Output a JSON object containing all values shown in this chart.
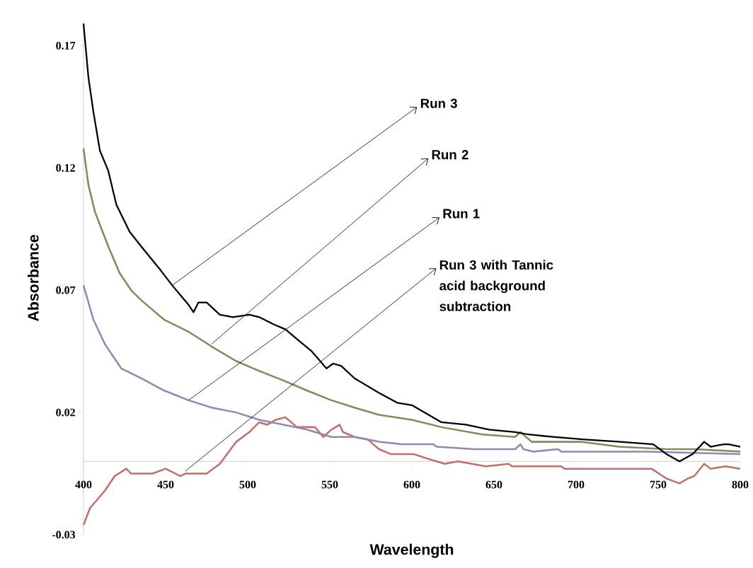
{
  "chart_data": {
    "type": "line",
    "xlabel": "Wavelength",
    "ylabel": "Absorbance",
    "xlim": [
      400,
      800
    ],
    "xticks": [
      400,
      450,
      500,
      550,
      600,
      650,
      700,
      750,
      800
    ],
    "ylim": [
      -0.03,
      0.18
    ],
    "yticks": [
      -0.03,
      0.02,
      0.07,
      0.12,
      0.17
    ],
    "grid": false,
    "series": [
      {
        "color": "#c0706b",
        "x": [
          400,
          404,
          413,
          419,
          426,
          429,
          442,
          450,
          459,
          462,
          475,
          483,
          493,
          501,
          507,
          512,
          517,
          523,
          530,
          541,
          546,
          551,
          556,
          558,
          565,
          573,
          580,
          587,
          601,
          610,
          620,
          628,
          645,
          659,
          661,
          691,
          693,
          746,
          755,
          763,
          768,
          772,
          778,
          782,
          791,
          800
        ],
        "values": [
          -0.026,
          -0.019,
          -0.012,
          -0.006,
          -0.003,
          -0.005,
          -0.005,
          -0.003,
          -0.006,
          -0.005,
          -0.005,
          -0.001,
          0.008,
          0.012,
          0.016,
          0.015,
          0.017,
          0.018,
          0.014,
          0.014,
          0.01,
          0.013,
          0.015,
          0.012,
          0.01,
          0.009,
          0.005,
          0.003,
          0.003,
          0.001,
          -0.001,
          0,
          -0.002,
          -0.001,
          -0.002,
          -0.002,
          -0.003,
          -0.003,
          -0.007,
          -0.009,
          -0.007,
          -0.006,
          -0.001,
          -0.003,
          -0.002,
          -0.003
        ]
      },
      {
        "color": "#9585b5",
        "x": [
          400,
          406,
          413,
          423,
          435,
          449,
          464,
          478,
          493,
          507,
          522,
          536,
          551,
          565,
          580,
          594,
          613,
          615,
          638,
          663,
          666,
          668,
          674,
          689,
          691,
          743,
          800
        ],
        "values": [
          0.072,
          0.058,
          0.048,
          0.038,
          0.034,
          0.029,
          0.025,
          0.022,
          0.02,
          0.017,
          0.015,
          0.013,
          0.01,
          0.01,
          0.008,
          0.007,
          0.007,
          0.006,
          0.005,
          0.005,
          0.007,
          0.005,
          0.004,
          0.005,
          0.004,
          0.004,
          0.003
        ]
      },
      {
        "color": "#77905a",
        "x": [
          400,
          403,
          407,
          415,
          422,
          429,
          435,
          449,
          464,
          478,
          493,
          507,
          522,
          536,
          551,
          565,
          580,
          600,
          618,
          643,
          663,
          666,
          673,
          703,
          726,
          755,
          772,
          800
        ],
        "values": [
          0.128,
          0.113,
          0.102,
          0.088,
          0.077,
          0.07,
          0.066,
          0.058,
          0.053,
          0.047,
          0.041,
          0.037,
          0.033,
          0.029,
          0.025,
          0.022,
          0.019,
          0.017,
          0.014,
          0.011,
          0.01,
          0.012,
          0.008,
          0.008,
          0.006,
          0.005,
          0.005,
          0.004
        ]
      },
      {
        "color": "#000000",
        "x": [
          400,
          403,
          406,
          410,
          415,
          420,
          428,
          435,
          446,
          454,
          464,
          467,
          470,
          475,
          483,
          491,
          501,
          507,
          516,
          523,
          530,
          539,
          548,
          552,
          557,
          565,
          580,
          591,
          600,
          618,
          633,
          647,
          663,
          671,
          686,
          704,
          727,
          747,
          755,
          763,
          771,
          778,
          782,
          790,
          793,
          800
        ],
        "values": [
          0.179,
          0.157,
          0.143,
          0.127,
          0.119,
          0.105,
          0.094,
          0.088,
          0.079,
          0.072,
          0.064,
          0.061,
          0.065,
          0.065,
          0.06,
          0.059,
          0.06,
          0.059,
          0.056,
          0.054,
          0.05,
          0.045,
          0.038,
          0.04,
          0.039,
          0.034,
          0.028,
          0.024,
          0.023,
          0.016,
          0.015,
          0.013,
          0.012,
          0.011,
          0.01,
          0.009,
          0.008,
          0.007,
          0.003,
          0.0,
          0.003,
          0.008,
          0.006,
          0.007,
          0.007,
          0.006
        ]
      }
    ],
    "annotations": [
      {
        "text": "Run 3",
        "x": 454,
        "y": 0.072
      },
      {
        "text": "Run 2",
        "x": 478,
        "y": 0.048
      },
      {
        "text": "Run 1",
        "x": 464,
        "y": 0.025
      },
      {
        "text": "Run 3 with Tannic acid background subtraction",
        "x": 462,
        "y": -0.004
      }
    ]
  }
}
